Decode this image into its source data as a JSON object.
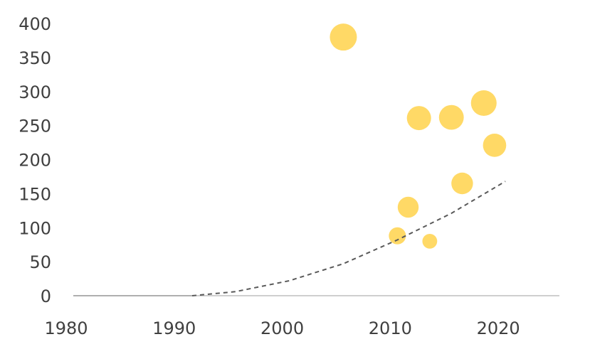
{
  "chart_data": {
    "type": "scatter",
    "title": "",
    "xlabel": "",
    "ylabel": "",
    "xlim": [
      1980,
      2025
    ],
    "ylim": [
      0,
      400
    ],
    "x_ticks": [
      1980,
      1990,
      2000,
      2010,
      2020
    ],
    "y_ticks": [
      0,
      50,
      100,
      150,
      200,
      250,
      300,
      350,
      400
    ],
    "x_tick_labels": [
      "1980",
      "1990",
      "2000",
      "2010",
      "2020"
    ],
    "y_tick_labels": [
      "0",
      "50",
      "100",
      "150",
      "200",
      "250",
      "300",
      "350",
      "400"
    ],
    "grid": false,
    "legend": "none",
    "bubble_color": "#FFD966",
    "trendline_color": "#595959",
    "axis_color": "#BFBFBF",
    "points": [
      {
        "x": 2005,
        "y": 380,
        "size": 5
      },
      {
        "x": 2010,
        "y": 88,
        "size": 2
      },
      {
        "x": 2011,
        "y": 130,
        "size": 3
      },
      {
        "x": 2012,
        "y": 261,
        "size": 4
      },
      {
        "x": 2013,
        "y": 80,
        "size": 1.5
      },
      {
        "x": 2015,
        "y": 262,
        "size": 4.2
      },
      {
        "x": 2016,
        "y": 165,
        "size": 3.2
      },
      {
        "x": 2018,
        "y": 283,
        "size": 4.5
      },
      {
        "x": 2019,
        "y": 221,
        "size": 3.7
      }
    ],
    "trendline": {
      "style": "dashed",
      "points": [
        {
          "x": 1991,
          "y": 0
        },
        {
          "x": 1995,
          "y": 6
        },
        {
          "x": 2000,
          "y": 22
        },
        {
          "x": 2005,
          "y": 47
        },
        {
          "x": 2010,
          "y": 82
        },
        {
          "x": 2015,
          "y": 121
        },
        {
          "x": 2020,
          "y": 168
        }
      ]
    }
  }
}
